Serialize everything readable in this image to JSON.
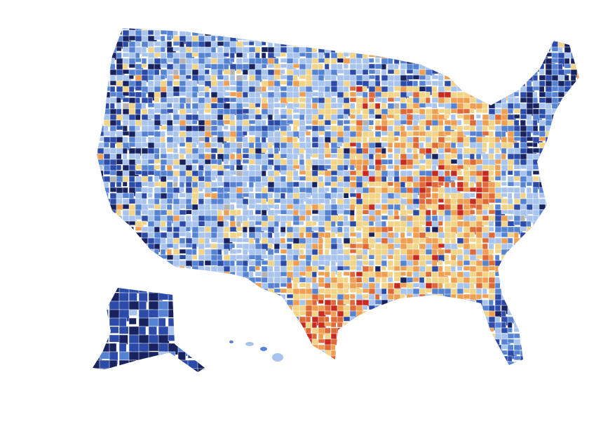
{
  "map": {
    "palette": [
      "#17225f",
      "#2c4aa8",
      "#5583d2",
      "#a8c3ec",
      "#f1d487",
      "#ef9f52",
      "#df6a39",
      "#c62a20",
      "#b3b3b3"
    ]
  }
}
